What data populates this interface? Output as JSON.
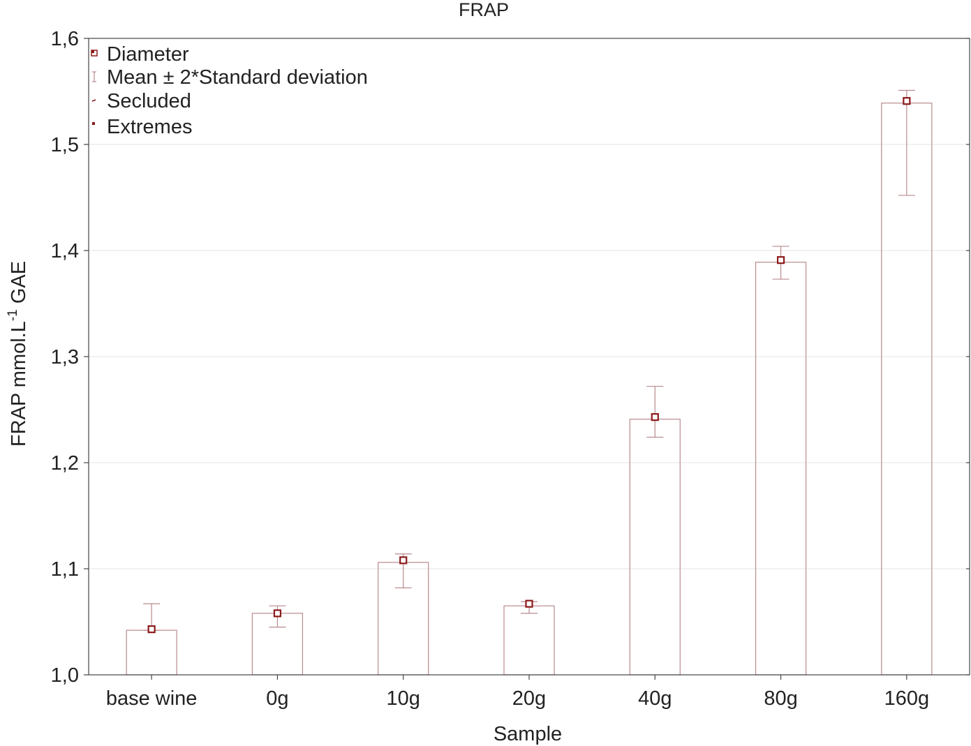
{
  "chart_data": {
    "type": "bar",
    "title": "FRAP",
    "xlabel": "Sample",
    "ylabel": {
      "main": "FRAP mmol.L",
      "superscript": "-1",
      "suffix": " GAE"
    },
    "ylim": [
      1.0,
      1.6
    ],
    "yticks": [
      1.0,
      1.1,
      1.2,
      1.3,
      1.4,
      1.5,
      1.6
    ],
    "ytick_labels": [
      "1,0",
      "1,1",
      "1,2",
      "1,3",
      "1,4",
      "1,5",
      "1,6"
    ],
    "categories": [
      "base wine",
      "0g",
      "10g",
      "20g",
      "40g",
      "80g",
      "160g"
    ],
    "values": [
      1.042,
      1.058,
      1.106,
      1.065,
      1.241,
      1.389,
      1.539
    ],
    "markers": [
      1.043,
      1.058,
      1.108,
      1.067,
      1.243,
      1.391,
      1.541
    ],
    "error_low": [
      1.042,
      1.045,
      1.082,
      1.058,
      1.224,
      1.373,
      1.452
    ],
    "error_high": [
      1.067,
      1.065,
      1.114,
      1.069,
      1.272,
      1.404,
      1.551
    ],
    "grid": true,
    "legend_position": "top-left",
    "legend": [
      {
        "label": "Diameter",
        "symbol": "square"
      },
      {
        "label": "Mean ± 2*Standard deviation",
        "symbol": "whisker"
      },
      {
        "label": "Secluded",
        "symbol": "dash"
      },
      {
        "label": "Extremes",
        "symbol": "corner"
      }
    ],
    "colors": {
      "bar_outline": "#b98a8e",
      "marker": "#8b1a1a",
      "grid": "#e4e4e4",
      "axis": "#444444"
    }
  }
}
